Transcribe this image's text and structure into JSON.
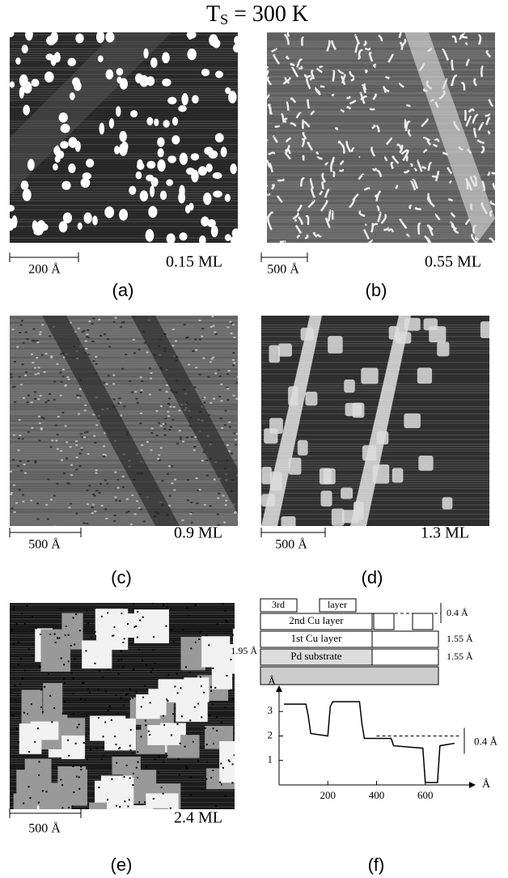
{
  "title": {
    "main": "T",
    "sub": "S",
    "rest": " = 300 K"
  },
  "panels": [
    {
      "scale": "200 Å",
      "coverage": "0.15 ML",
      "label": "(a)"
    },
    {
      "scale": "500 Å",
      "coverage": "0.55 ML",
      "label": "(b)"
    },
    {
      "scale": "500 Å",
      "coverage": "0.9 ML",
      "label": "(c)"
    },
    {
      "scale": "500 Å",
      "coverage": "1.3 ML",
      "label": "(d)"
    },
    {
      "scale": "500 Å",
      "coverage": "2.4 ML",
      "label": "(e)"
    }
  ],
  "panel_f": {
    "label": "(f)",
    "schematic": {
      "third": "3rd",
      "layer": "layer",
      "second": "2nd Cu layer",
      "first": "1st Cu layer",
      "substrate": "Pd substrate",
      "step_left": "1.95 Å",
      "step_top": "0.4 Å",
      "step_mid": "1.55 Å",
      "step_low": "1.55 Å"
    },
    "profile": {
      "type": "line",
      "x_label": "Å",
      "y_label": "Å",
      "annotation": "0.4 Å",
      "x": [
        20,
        110,
        120,
        130,
        200,
        210,
        220,
        330,
        340,
        350,
        460,
        470,
        590,
        600,
        650,
        660,
        720
      ],
      "values": [
        3.3,
        3.3,
        2.8,
        2.1,
        2.0,
        3.2,
        3.4,
        3.4,
        2.5,
        1.9,
        1.9,
        1.6,
        1.5,
        0.1,
        0.1,
        1.6,
        1.7
      ],
      "xlim": [
        0,
        780
      ],
      "ylim": [
        0,
        3.8
      ],
      "xticks": [
        200,
        400,
        600
      ],
      "yticks": [
        1,
        2,
        3
      ]
    }
  }
}
